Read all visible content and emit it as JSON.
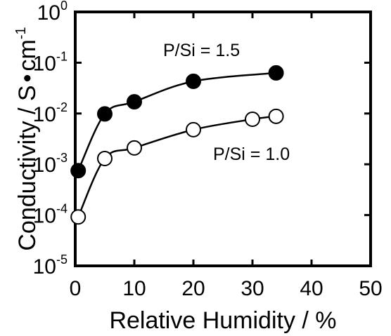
{
  "chart_data": {
    "type": "scatter",
    "xlabel": "Relative Humidity / %",
    "ylabel_base": "Conductivity / S",
    "ylabel_dot": "•",
    "ylabel_unit": "cm",
    "ylabel_exp": "-1",
    "xlim": [
      0,
      50
    ],
    "ylim": [
      1e-05,
      1
    ],
    "yscale": "log",
    "x_ticks": [
      0,
      10,
      20,
      30,
      40,
      50
    ],
    "x_tick_labels": [
      "0",
      "10",
      "20",
      "30",
      "40",
      "50"
    ],
    "y_ticks": [
      1,
      0.1,
      0.01,
      0.001,
      0.0001,
      1e-05
    ],
    "y_tick_labels": [
      {
        "base": "10",
        "exp": "0"
      },
      {
        "base": "10",
        "exp": "-1"
      },
      {
        "base": "10",
        "exp": "-2"
      },
      {
        "base": "10",
        "exp": "-3"
      },
      {
        "base": "10",
        "exp": "-4"
      },
      {
        "base": "10",
        "exp": "-5"
      }
    ],
    "grid": false,
    "annotations": [
      "P/Si = 1.5",
      "P/Si = 1.0"
    ],
    "series": [
      {
        "marker": "filled-circle",
        "color": "#000000",
        "x": [
          0.5,
          5,
          10,
          20,
          34
        ],
        "y": [
          0.00075,
          0.0098,
          0.017,
          0.043,
          0.063
        ]
      },
      {
        "marker": "open-circle",
        "color": "#000000",
        "x": [
          0.5,
          5,
          10,
          20,
          30,
          34
        ],
        "y": [
          9.2e-05,
          0.0013,
          0.0021,
          0.0048,
          0.0077,
          0.0088
        ]
      }
    ]
  }
}
